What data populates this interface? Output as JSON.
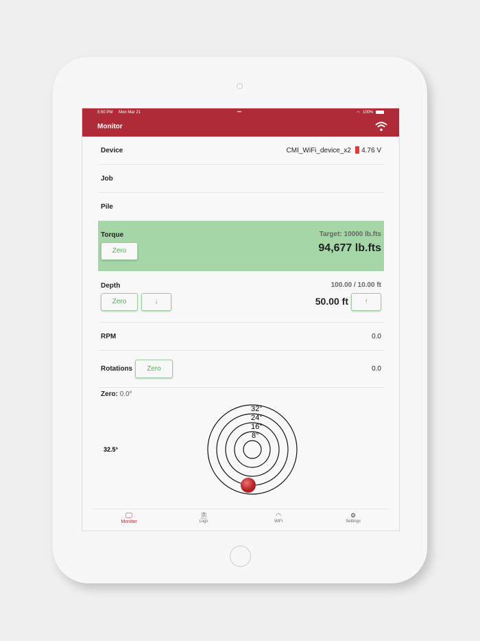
{
  "status_bar": {
    "time": "5:50 PM",
    "date": "Mon Mar 21",
    "dots": "•••",
    "battery": "100%"
  },
  "header": {
    "title": "Monitor",
    "wifi_icon": "wifi-icon"
  },
  "device": {
    "label": "Device",
    "name": "CMI_WiFi_device_x2",
    "voltage": "4.76 V"
  },
  "job": {
    "label": "Job"
  },
  "pile": {
    "label": "Pile"
  },
  "torque": {
    "label": "Torque",
    "zero": "Zero",
    "target": "Target: 10000 lb.fts",
    "value": "94,677 lb.fts",
    "bg": "#a5d6a7"
  },
  "depth": {
    "label": "Depth",
    "zero": "Zero",
    "down": "↓",
    "up": "↑",
    "range": "100.00 / 10.00 ft",
    "value": "50.00 ft"
  },
  "rpm": {
    "label": "RPM",
    "value": "0.0"
  },
  "rotations": {
    "label": "Rotations",
    "zero": "Zero",
    "value": "0.0"
  },
  "inclination": {
    "zero_label": "Zero:",
    "zero_value": "0.0°",
    "angle": "32.5°",
    "rings": [
      "32°",
      "24°",
      "16°",
      "8°"
    ]
  },
  "tabs": [
    {
      "label": "Monitor",
      "icon": "monitor-icon",
      "active": true
    },
    {
      "label": "Logs",
      "icon": "clipboard-icon"
    },
    {
      "label": "WiFi",
      "icon": "wifi-icon"
    },
    {
      "label": "Settings",
      "icon": "gear-icon"
    }
  ],
  "accent": "#ae2b37"
}
